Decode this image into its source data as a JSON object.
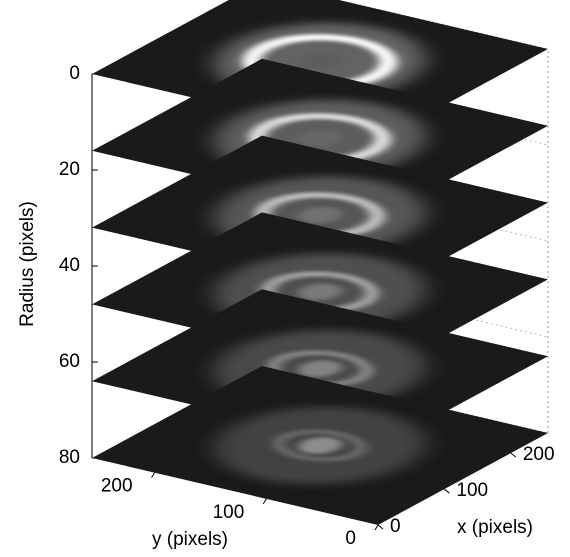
{
  "chart_data": {
    "type": "slices",
    "z_label": "Radius (pixels)",
    "x_label": "x (pixels)",
    "y_label": "y (pixels)",
    "zlim": [
      0,
      80
    ],
    "zticks": [
      0,
      20,
      40,
      60,
      80
    ],
    "xlim": [
      0,
      256
    ],
    "xticks": [
      0,
      100,
      200
    ],
    "ylim": [
      0,
      256
    ],
    "yticks": [
      0,
      100,
      200
    ],
    "slices": [
      0,
      16,
      32,
      48,
      64,
      80
    ]
  }
}
